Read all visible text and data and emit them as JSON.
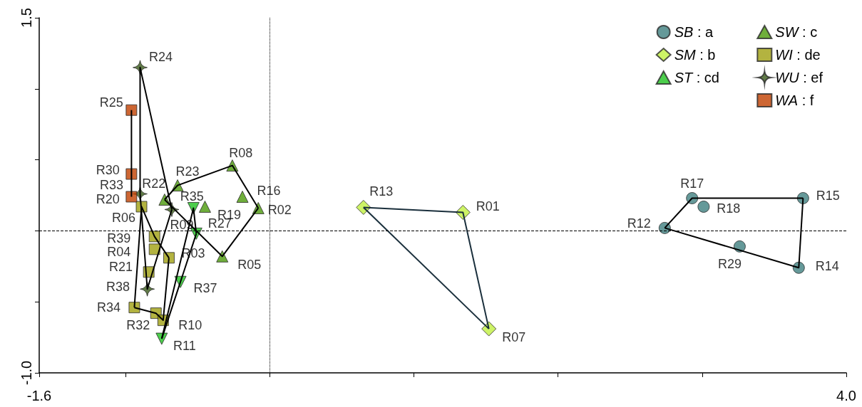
{
  "chart_data": {
    "type": "scatter",
    "xlim": [
      -1.6,
      4.0
    ],
    "xticks": [
      -1.6,
      {
        "value": -1,
        "label": null
      },
      {
        "value": 0,
        "label": null
      },
      {
        "value": 1,
        "label": null
      },
      {
        "value": 2,
        "label": null
      },
      {
        "value": 3,
        "label": null
      },
      {
        "value": 4,
        "label": "4.0"
      }
    ],
    "ylim": [
      -1.0,
      1.5
    ],
    "yticks": [
      {
        "value": -1,
        "label": "-1.0"
      },
      {
        "value": -0.5,
        "label": null
      },
      {
        "value": 0,
        "label": null
      },
      {
        "value": 0.5,
        "label": null
      },
      {
        "value": 1,
        "label": null
      },
      1.5
    ],
    "grid": false,
    "legend": "top right",
    "ref_lines": [
      {
        "axis": "x",
        "value": 0,
        "label": null,
        "color": "#000000",
        "line_style": "dotted"
      },
      {
        "axis": "y",
        "value": 0,
        "label": null,
        "color": "#000000",
        "line_style": "dashed"
      }
    ],
    "series": [
      {
        "name": "SB : a",
        "marker": "circle",
        "color": "#3f7f7f",
        "x": [
          2.93,
          3.7,
          3.01,
          2.74,
          3.26,
          3.67
        ],
        "values": [
          0.23,
          0.23,
          0.17,
          0.02,
          -0.11,
          -0.26
        ],
        "value_labels": [
          "R17",
          "R15",
          "R18",
          "R12",
          "R29",
          "R14"
        ]
      },
      {
        "name": "SM : b",
        "marker": "diamond",
        "color": "#c0f040",
        "x": [
          0.65,
          1.34,
          1.52
        ],
        "values": [
          0.165,
          0.13,
          -0.69
        ],
        "value_labels": [
          "R13",
          "R01",
          "R07"
        ]
      },
      {
        "name": "ST : cd",
        "marker": "triangle-down",
        "color": "#1fc21f",
        "x": [
          -0.53,
          -0.51,
          -0.62,
          -0.75
        ],
        "values": [
          0.16,
          -0.02,
          -0.36,
          -0.76
        ],
        "value_labels": [
          "R35",
          "R27",
          "R37",
          "R11"
        ]
      },
      {
        "name": "SW : c",
        "marker": "triangle",
        "color": "#4b9a0a",
        "x": [
          -0.26,
          -0.64,
          -0.73,
          -0.19,
          -0.08,
          -0.45,
          -0.33
        ],
        "values": [
          0.46,
          0.32,
          0.22,
          0.24,
          0.16,
          0.17,
          -0.18
        ],
        "value_labels": [
          "R08",
          "R23",
          "R22",
          "R16",
          "R02",
          "R19",
          "R05"
        ]
      },
      {
        "name": "WI : de",
        "marker": "square",
        "color": "#a0a010",
        "x": [
          -0.89,
          -0.8,
          -0.8,
          -0.7,
          -0.84,
          -0.94,
          -0.79,
          -0.74
        ],
        "values": [
          0.17,
          -0.04,
          -0.13,
          -0.19,
          -0.29,
          -0.54,
          -0.58,
          -0.63
        ],
        "value_labels": [
          "R06",
          "R39",
          "R04",
          "R03",
          "R21",
          "R34",
          "R32",
          "R10"
        ]
      },
      {
        "name": "WU : ef",
        "marker": "star",
        "color": "#3a5a1a",
        "x": [
          -0.9,
          -0.9,
          -0.68,
          -0.85
        ],
        "values": [
          1.15,
          0.26,
          0.15,
          -0.41
        ],
        "value_labels": [
          "R24",
          "R33",
          "R09",
          "R38"
        ]
      },
      {
        "name": "WA : f",
        "marker": "square",
        "color": "#c04000",
        "x": [
          -0.96,
          -0.96,
          -0.96
        ],
        "values": [
          0.85,
          0.4,
          0.24
        ],
        "value_labels": [
          "R25",
          "R30",
          "R20"
        ]
      },
      {
        "type": "line",
        "marker": "none",
        "color": "#000000",
        "x": [
          2.74,
          2.93,
          3.7
        ],
        "values": [
          0.02,
          0.23,
          0.23
        ]
      },
      {
        "type": "line",
        "marker": "none",
        "color": "#000000",
        "x": [
          2.74,
          3.67,
          3.7
        ],
        "values": [
          0.02,
          -0.26,
          0.23
        ]
      },
      {
        "type": "line",
        "marker": "none",
        "color": "#1a2f3c",
        "x": [
          0.65,
          1.34,
          1.52
        ],
        "values": [
          0.165,
          0.13,
          -0.69
        ]
      },
      {
        "type": "line",
        "marker": "none",
        "color": "#1a2f3c",
        "x": [
          0.65,
          1.52
        ],
        "values": [
          0.165,
          -0.69
        ]
      },
      {
        "type": "line",
        "marker": "none",
        "color": "#000000",
        "x": [
          -0.75,
          -0.53,
          -0.51
        ],
        "values": [
          -0.76,
          0.16,
          -0.02
        ]
      },
      {
        "type": "line",
        "marker": "none",
        "color": "#000000",
        "x": [
          -0.75,
          -0.51
        ],
        "values": [
          -0.76,
          -0.02
        ]
      },
      {
        "type": "line",
        "marker": "none",
        "color": "#000000",
        "x": [
          -0.73,
          -0.64,
          -0.26,
          -0.08
        ],
        "values": [
          0.22,
          0.32,
          0.46,
          0.16
        ]
      },
      {
        "type": "line",
        "marker": "none",
        "color": "#000000",
        "x": [
          -0.73,
          -0.33,
          -0.08
        ],
        "values": [
          0.22,
          -0.18,
          0.16
        ]
      },
      {
        "type": "line",
        "marker": "none",
        "color": "#000000",
        "x": [
          -0.94,
          -0.89,
          -0.8,
          -0.7
        ],
        "values": [
          -0.54,
          0.17,
          -0.04,
          -0.19
        ]
      },
      {
        "type": "line",
        "marker": "none",
        "color": "#000000",
        "x": [
          -0.94,
          -0.79,
          -0.74,
          -0.7
        ],
        "values": [
          -0.54,
          -0.58,
          -0.63,
          -0.19
        ]
      },
      {
        "type": "line",
        "marker": "none",
        "color": "#000000",
        "x": [
          -0.9,
          -0.9,
          -0.68
        ],
        "values": [
          0.26,
          1.15,
          0.15
        ]
      },
      {
        "type": "line",
        "marker": "none",
        "color": "#000000",
        "x": [
          -0.9,
          -0.85,
          -0.68
        ],
        "values": [
          0.26,
          -0.41,
          0.15
        ]
      },
      {
        "type": "line",
        "marker": "none",
        "color": "#000000",
        "x": [
          -0.96,
          -0.96
        ],
        "values": [
          0.85,
          0.24
        ]
      }
    ]
  }
}
